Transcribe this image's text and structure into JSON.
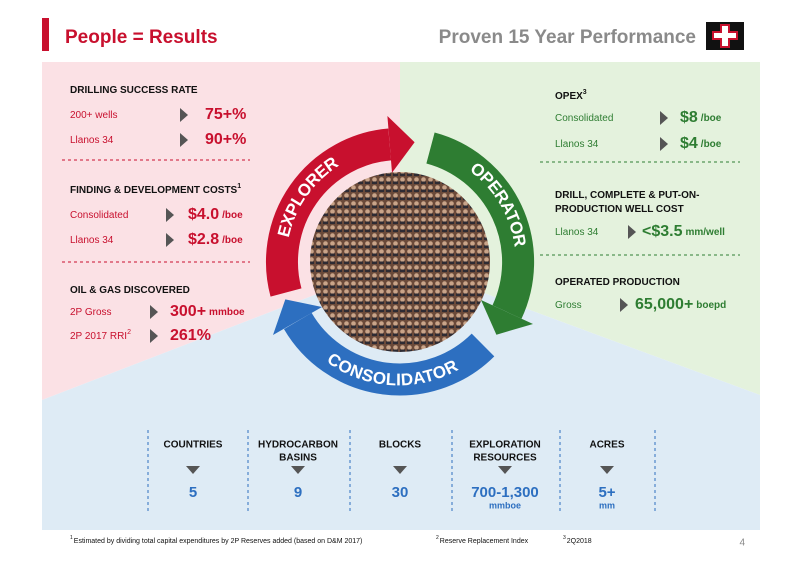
{
  "header": {
    "title": "People = Results",
    "subtitle": "Proven 15 Year Performance"
  },
  "left": [
    {
      "title": "DRILLING SUCCESS RATE",
      "rows": [
        {
          "label": "200+ wells",
          "value": "75+%"
        },
        {
          "label": "Llanos 34",
          "value": "90+%"
        }
      ]
    },
    {
      "title": "FINDING & DEVELOPMENT COSTS",
      "sup": "1",
      "rows": [
        {
          "label": "Consolidated",
          "value": "$4.0",
          "unit": "/boe"
        },
        {
          "label": "Llanos 34",
          "value": "$2.8",
          "unit": "/boe"
        }
      ]
    },
    {
      "title": "OIL & GAS  DISCOVERED",
      "rows": [
        {
          "label": "2P Gross",
          "value": "300+",
          "unit": "mmboe"
        },
        {
          "label": "2P 2017 RRI",
          "sup": "2",
          "value": "261%"
        }
      ]
    }
  ],
  "right": [
    {
      "title": "OPEX",
      "sup": "3",
      "rows": [
        {
          "label": "Consolidated",
          "value": "$8",
          "unit": "/boe"
        },
        {
          "label": "Llanos 34",
          "value": "$4",
          "unit": "/boe"
        }
      ]
    },
    {
      "title": [
        "DRILL, COMPLETE & PUT-ON-",
        "PRODUCTION WELL COST"
      ],
      "rows": [
        {
          "label": "Llanos 34",
          "value": "<$3.5",
          "unit": "mm/well"
        }
      ]
    },
    {
      "title": "OPERATED PRODUCTION",
      "rows": [
        {
          "label": "Gross",
          "value": "65,000+",
          "unit": "boepd"
        }
      ]
    }
  ],
  "cycle": [
    "EXPLORER",
    "OPERATOR",
    "CONSOLIDATOR"
  ],
  "stats": [
    {
      "label": [
        "COUNTRIES"
      ],
      "value": "5"
    },
    {
      "label": [
        "HYDROCARBON",
        "BASINS"
      ],
      "value": "9"
    },
    {
      "label": [
        "BLOCKS"
      ],
      "value": "30"
    },
    {
      "label": [
        "EXPLORATION",
        "RESOURCES"
      ],
      "value": "700-1,300",
      "unit": "mmboe"
    },
    {
      "label": [
        "ACRES"
      ],
      "value": "5+",
      "unit": "mm"
    }
  ],
  "footnotes": [
    {
      "num": "1",
      "text": "Estimated by dividing total capital expenditures by 2P Reserves added (based on D&M 2017)"
    },
    {
      "num": "2",
      "text": "Reserve Replacement Index"
    },
    {
      "num": "3",
      "text": "2Q2018"
    }
  ],
  "page_number": "4"
}
